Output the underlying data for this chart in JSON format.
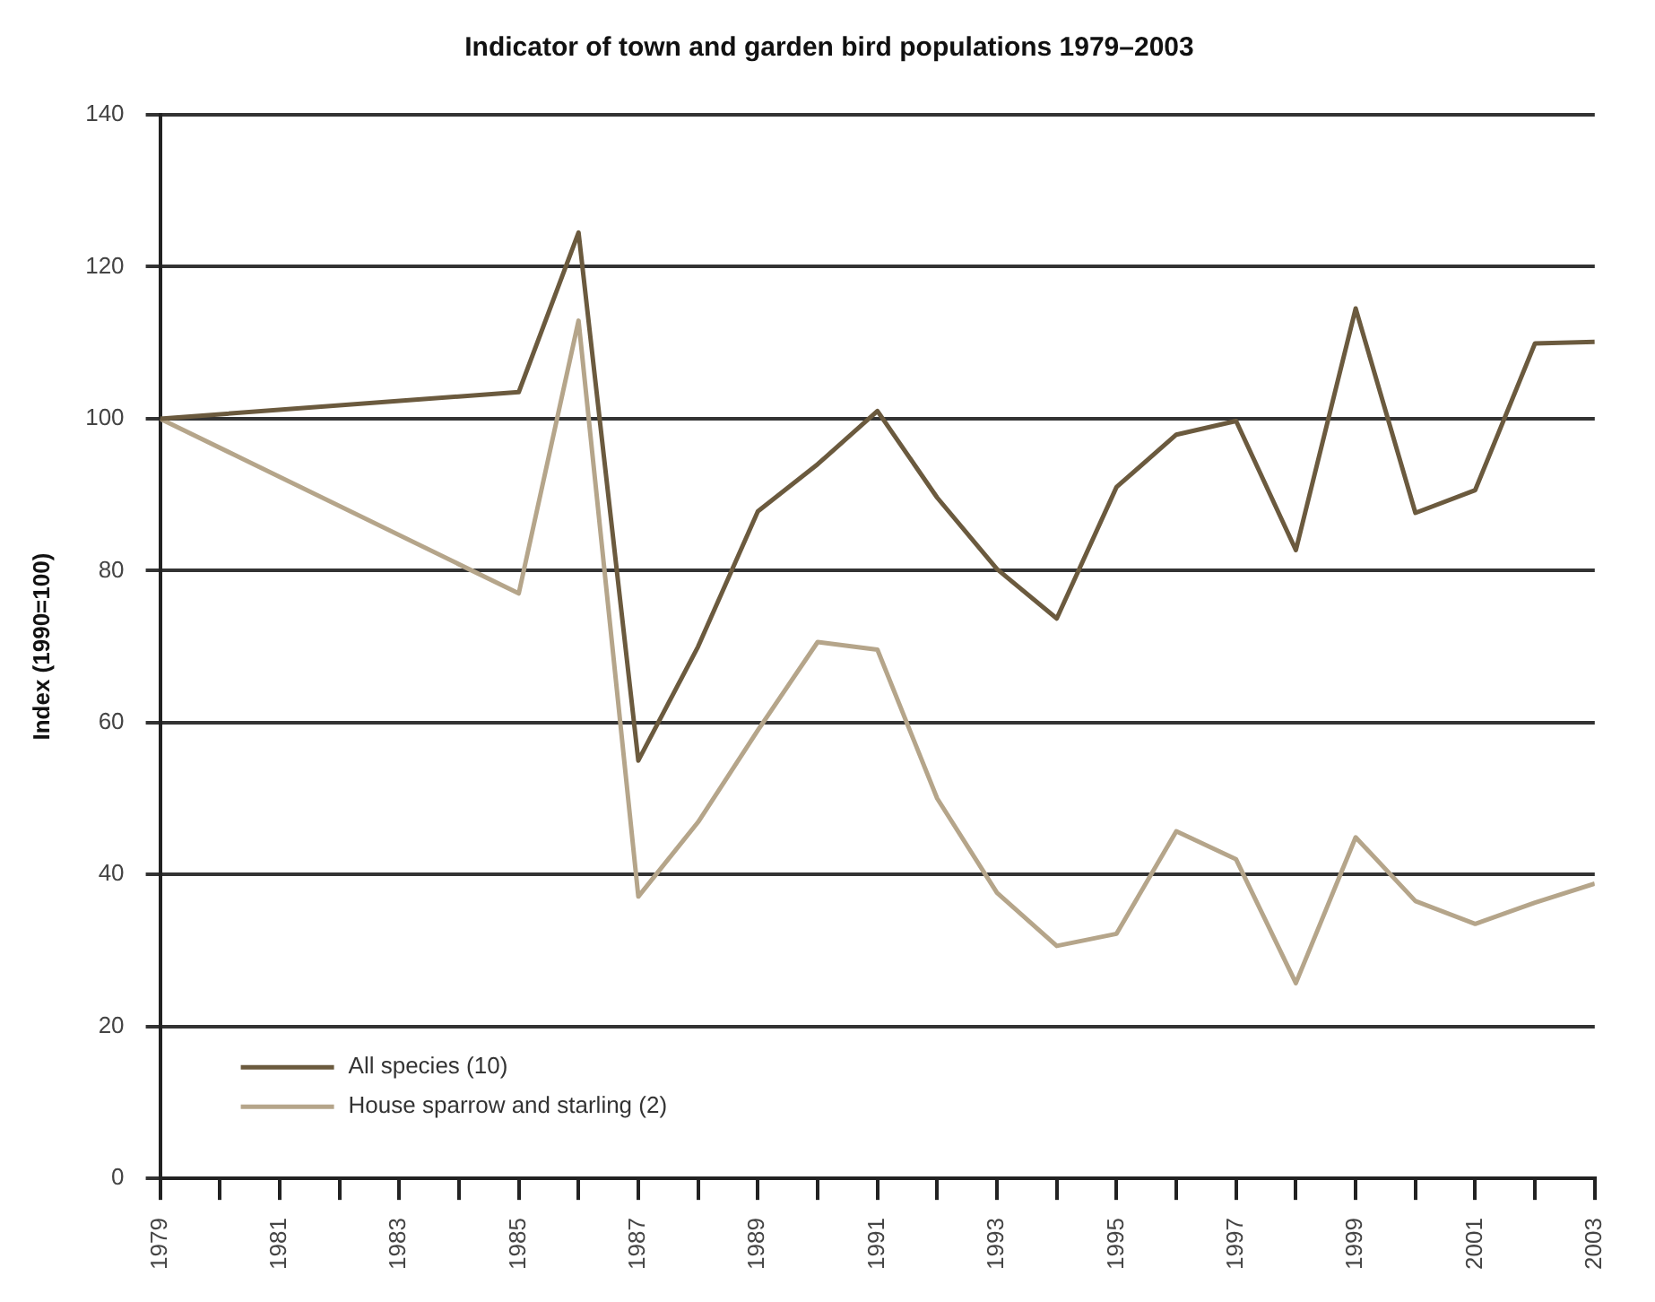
{
  "chart_data": {
    "type": "line",
    "title": "Indicator of town and garden bird populations 1979–2003",
    "ylabel": "Index (1990=100)",
    "x": [
      1979,
      1985,
      1986,
      1987,
      1988,
      1989,
      1990,
      1991,
      1992,
      1993,
      1994,
      1995,
      1996,
      1997,
      1998,
      1999,
      2000,
      2001,
      2002,
      2003
    ],
    "series": [
      {
        "name": "All species (10)",
        "color": "#6b5a3e",
        "values": [
          100,
          103.5,
          124.5,
          55,
          70,
          87.8,
          94,
          101,
          89.6,
          80.2,
          73.7,
          91,
          97.9,
          99.7,
          82.7,
          114.5,
          87.6,
          90.6,
          109.9,
          110.1
        ]
      },
      {
        "name": "House sparrow and starling (2)",
        "color": "#b5a58a",
        "values": [
          100,
          77,
          112.9,
          37.1,
          46.9,
          59,
          70.6,
          69.6,
          50,
          37.6,
          30.6,
          32.2,
          45.7,
          42,
          25.7,
          44.9,
          36.5,
          33.5,
          36.3,
          38.8
        ]
      }
    ],
    "xlim": [
      1979,
      2003
    ],
    "xticks": [
      1979,
      {
        "value": 1980,
        "label": null
      },
      1981,
      {
        "value": 1982,
        "label": null
      },
      1983,
      {
        "value": 1984,
        "label": null
      },
      1985,
      {
        "value": 1986,
        "label": null
      },
      1987,
      {
        "value": 1988,
        "label": null
      },
      1989,
      {
        "value": 1990,
        "label": null
      },
      1991,
      {
        "value": 1992,
        "label": null
      },
      1993,
      {
        "value": 1994,
        "label": null
      },
      1995,
      {
        "value": 1996,
        "label": null
      },
      1997,
      {
        "value": 1998,
        "label": null
      },
      1999,
      {
        "value": 2000,
        "label": null
      },
      2001,
      {
        "value": 2002,
        "label": null
      },
      2003
    ],
    "ylim": [
      0,
      140
    ],
    "yticks": [
      0,
      20,
      40,
      60,
      80,
      100,
      120,
      140
    ],
    "grid": "y",
    "legend": "bottom left",
    "marker": "none",
    "line_style": "solid"
  }
}
